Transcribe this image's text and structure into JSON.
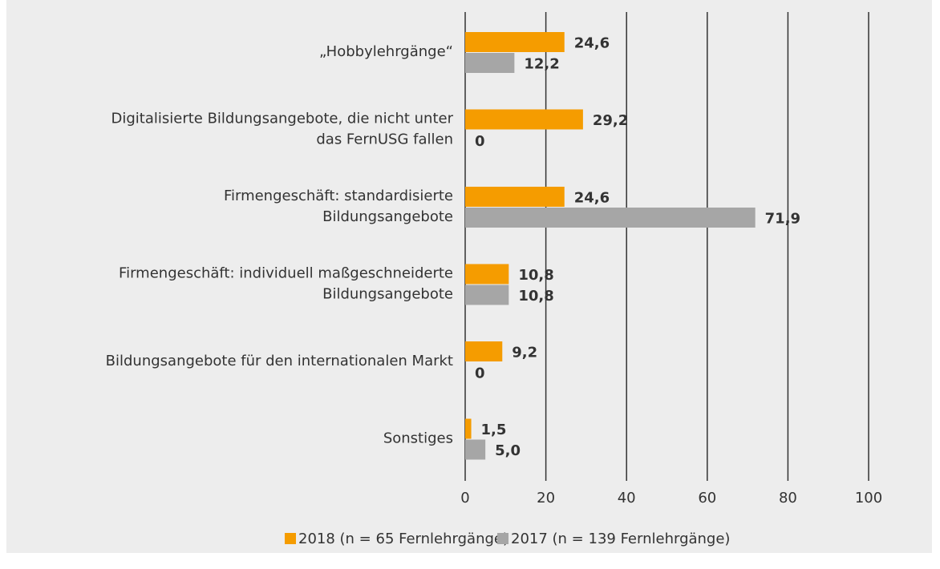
{
  "chart_data": {
    "type": "hbar",
    "categories": [
      "„Hobbylehrgänge“",
      "Digitalisierte Bildungsangebote, die nicht unter\ndas FernUSG fallen",
      "Firmengeschäft: standardisierte\nBildungsangebote",
      "Firmengeschäft: individuell maßgeschneiderte\nBildungsangebote",
      "Bildungsangebote für den internationalen Markt",
      "Sonstiges"
    ],
    "series": [
      {
        "name": "2018 (n = 65 Fernlehrgänge)",
        "color": "#f59c00",
        "values": [
          24.6,
          29.2,
          24.6,
          10.8,
          9.2,
          1.5
        ],
        "value_labels": [
          "24,6",
          "29,2",
          "24,6",
          "10,8",
          "9,2",
          "1,5"
        ]
      },
      {
        "name": "2017 (n = 139 Fernlehrgänge)",
        "color": "#a6a6a6",
        "values": [
          12.2,
          0,
          71.9,
          10.8,
          0,
          5.0
        ],
        "value_labels": [
          "12,2",
          "0",
          "71,9",
          "10,8",
          "0",
          "5,0"
        ]
      }
    ],
    "xlim": [
      0,
      100
    ],
    "xticks": [
      0,
      20,
      40,
      60,
      80,
      100
    ],
    "grid": true,
    "legend": "bottom"
  }
}
